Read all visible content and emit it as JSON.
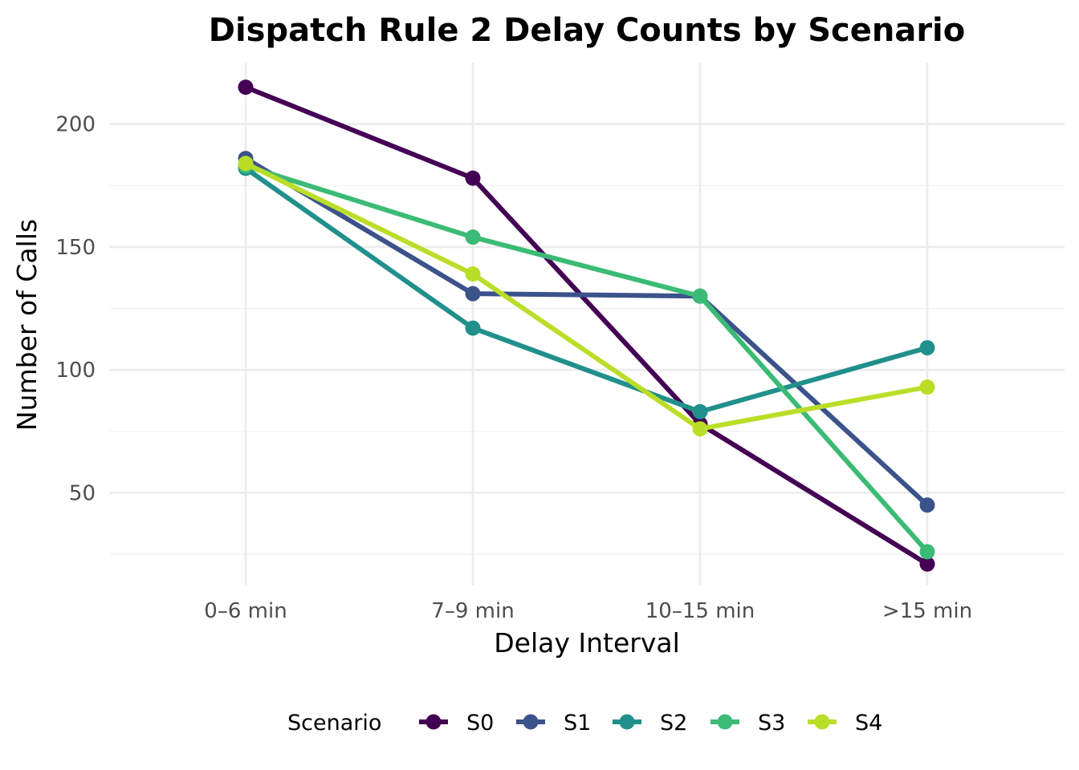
{
  "chart_data": {
    "type": "line",
    "title": "Dispatch Rule 2 Delay Counts by Scenario",
    "xlabel": "Delay Interval",
    "ylabel": "Number of Calls",
    "categories": [
      "0–6 min",
      "7–9 min",
      "10–15 min",
      ">15 min"
    ],
    "ylim": [
      12,
      225
    ],
    "yticks": [
      50,
      100,
      150,
      200
    ],
    "grid": true,
    "legend": {
      "title": "Scenario",
      "placement": "bottom"
    },
    "series": [
      {
        "name": "S0",
        "color": "#440154",
        "values": [
          215,
          178,
          78,
          21
        ]
      },
      {
        "name": "S1",
        "color": "#3b528b",
        "values": [
          186,
          131,
          130,
          45
        ]
      },
      {
        "name": "S2",
        "color": "#21908c",
        "values": [
          182,
          117,
          83,
          109
        ]
      },
      {
        "name": "S3",
        "color": "#3bbb75",
        "values": [
          183,
          154,
          130,
          26
        ]
      },
      {
        "name": "S4",
        "color": "#bade28",
        "values": [
          184,
          139,
          76,
          93
        ]
      }
    ]
  }
}
